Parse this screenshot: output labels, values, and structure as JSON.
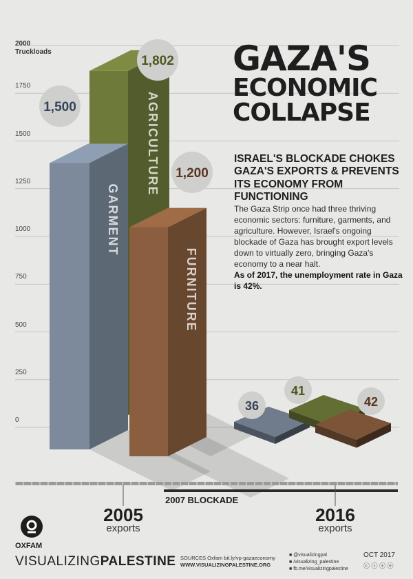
{
  "header": {
    "title_line1": "GAZA'S",
    "title_line2": "ECONOMIC",
    "title_line3": "COLLAPSE",
    "subtitle": "ISRAEL'S BLOCKADE CHOKES GAZA'S EXPORTS & PREVENTS ITS ECONOMY FROM FUNCTIONING",
    "body": "The Gaza Strip once had three thriving economic sectors: furniture, garments, and agriculture. However, Israel's ongoing blockade of Gaza has brought export levels down to virtually zero, bringing Gaza's economy to a near halt.",
    "body_bold": "As of 2017, the unemployment rate in Gaza is 42%."
  },
  "chart_data": {
    "type": "bar",
    "ylabel": "Truckloads",
    "ylim": [
      0,
      2000
    ],
    "yticks": [
      0,
      250,
      500,
      750,
      1000,
      1250,
      1500,
      1750,
      2000
    ],
    "categories": [
      "2005 exports",
      "2016 exports"
    ],
    "series": [
      {
        "name": "GARMENT",
        "values": [
          1500,
          36
        ],
        "color": "#7c8a9c",
        "labels": [
          "1,500",
          "36"
        ]
      },
      {
        "name": "AGRICULTURE",
        "values": [
          1802,
          41
        ],
        "color": "#6e7a3a",
        "labels": [
          "1,802",
          "41"
        ]
      },
      {
        "name": "FURNITURE",
        "values": [
          1200,
          42
        ],
        "color": "#8a5e3e",
        "labels": [
          "1,200",
          "42"
        ]
      }
    ]
  },
  "timeline": {
    "year_2005": "2005",
    "year_2005_sub": "exports",
    "year_2016": "2016",
    "year_2016_sub": "exports",
    "blockade_label": "2007 BLOCKADE"
  },
  "footer": {
    "org": "OXFAM",
    "brand_light": "VISUALIZING",
    "brand_bold": "PALESTINE",
    "sources_line1": "SOURCES Oxfam bit.ly/vp-gazaeconomy",
    "sources_line2": "WWW.VISUALIZINGPALESTINE.ORG",
    "social1": "@visualizingpal",
    "social2": "/visualizing_palestine",
    "social3": "fb.me/visualizingpalestine",
    "date": "OCT 2017",
    "license": "cc by nc nd"
  }
}
